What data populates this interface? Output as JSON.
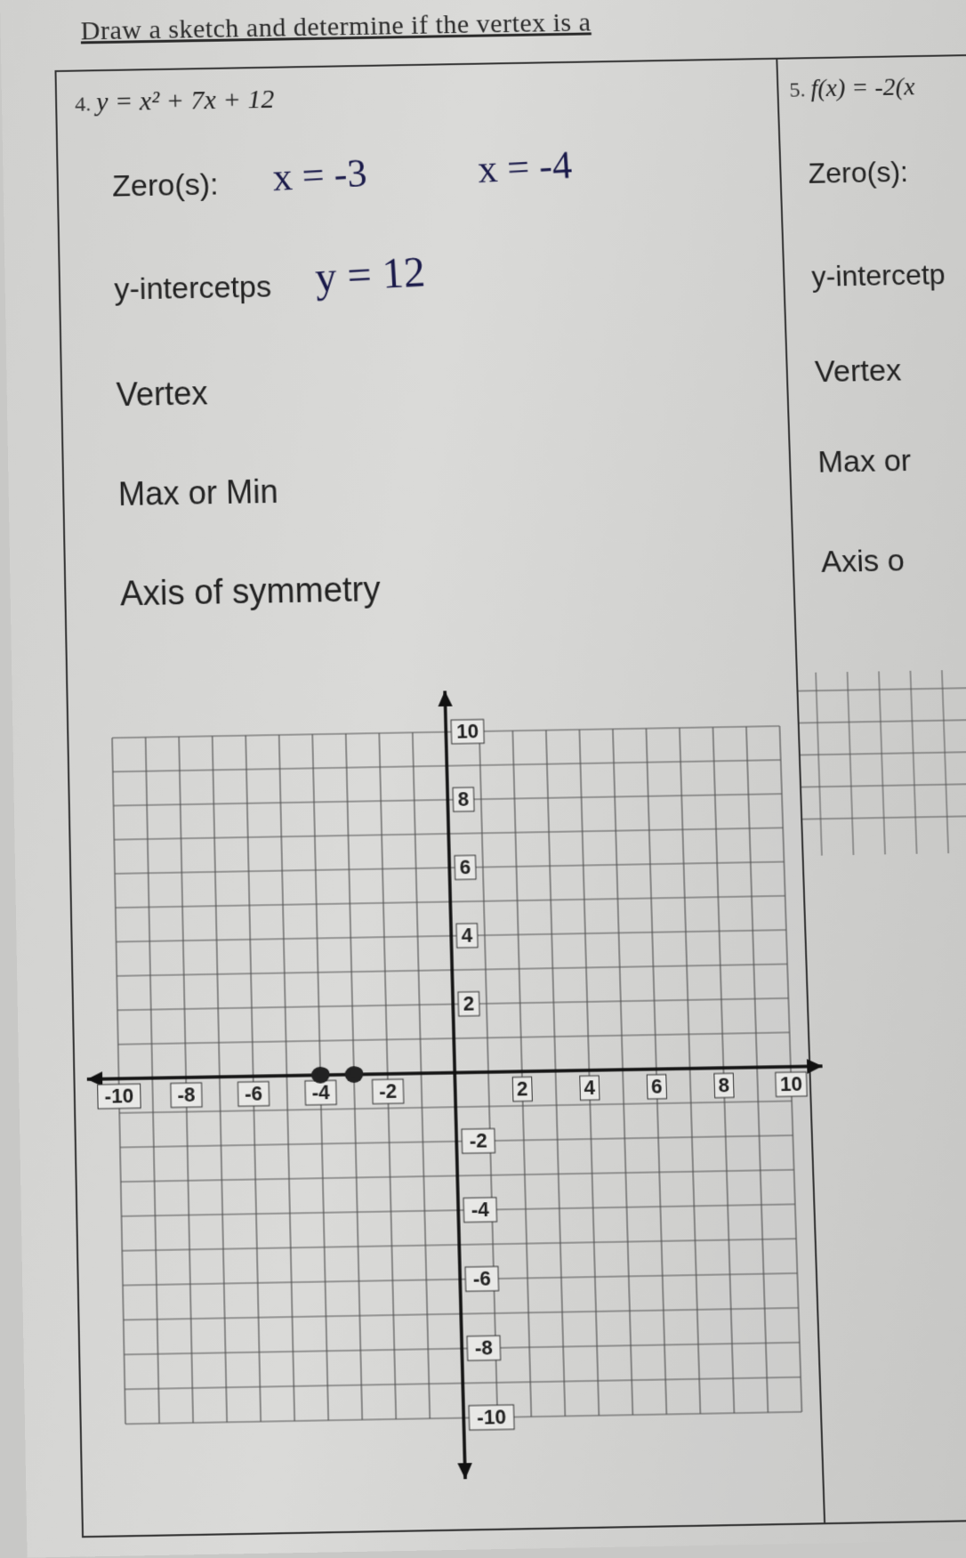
{
  "instruction": "Draw a sketch and determine if the vertex is a",
  "left": {
    "num": "4.",
    "equation": "y = x² + 7x + 12",
    "prompts": {
      "zeros": "Zero(s):",
      "yint": "y-intercetps",
      "vertex": "Vertex",
      "maxmin": "Max or Min",
      "axis": "Axis of symmetry"
    },
    "hand": {
      "z1": "x = -3",
      "z2": "x = -4",
      "yint": "y = 12"
    }
  },
  "right": {
    "num": "5.",
    "equation": "f(x) = -2(x",
    "prompts": {
      "zeros": "Zero(s):",
      "yint": "y-intercetp",
      "vertex": "Vertex",
      "maxmin": "Max or",
      "axis": "Axis o"
    }
  },
  "graph": {
    "xmin": -10,
    "xmax": 10,
    "ymin": -10,
    "ymax": 10,
    "xticks": [
      -10,
      -8,
      -6,
      -4,
      -2,
      2,
      4,
      6,
      8,
      10
    ],
    "yticks": [
      -10,
      -8,
      -6,
      -4,
      -2,
      2,
      4,
      6,
      8,
      10
    ],
    "xticklabels": [
      "-10",
      "-8",
      "-6",
      "-4",
      "-2",
      "2",
      "4",
      "6",
      "8",
      "10"
    ],
    "yticklabels_pos": [
      "10",
      "8",
      "6",
      "4",
      "2"
    ],
    "yticklabels_neg": [
      "-2",
      "-4",
      "-6",
      "-8",
      "-10"
    ],
    "grid_color": "#555555",
    "axis_color": "#111111",
    "bg_color": "#d2d2cf",
    "tick_fontsize": 22,
    "tick_fontweight": "bold",
    "plotted_points": [
      [
        -3,
        0
      ],
      [
        -4,
        0
      ]
    ],
    "point_color": "#222222",
    "grid_line_width": 1.2,
    "axis_line_width": 3.5
  },
  "colors": {
    "paper": "#d2d2cf",
    "ink": "#222222",
    "handwriting": "#1a1a4a"
  },
  "fonts": {
    "print_serif": "Georgia",
    "print_sans": "Arial",
    "hand": "Comic Sans MS"
  }
}
